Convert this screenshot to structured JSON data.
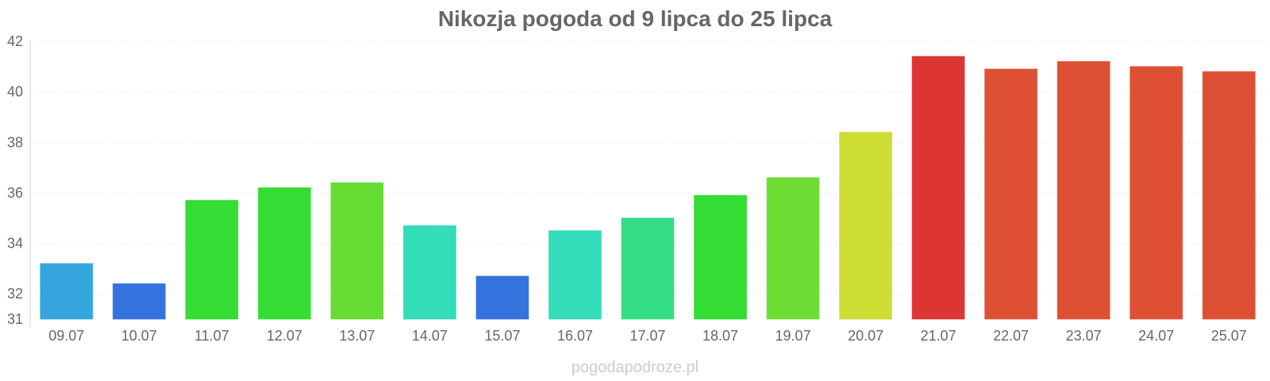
{
  "chart_data": {
    "type": "bar",
    "title": "Nikozja pogoda od 9 lipca do 25 lipca",
    "xlabel": "",
    "ylabel": "",
    "categories": [
      "09.07",
      "10.07",
      "11.07",
      "12.07",
      "13.07",
      "14.07",
      "15.07",
      "16.07",
      "17.07",
      "18.07",
      "19.07",
      "20.07",
      "21.07",
      "22.07",
      "23.07",
      "24.07",
      "25.07"
    ],
    "values": [
      33.2,
      32.4,
      35.7,
      36.2,
      36.4,
      34.7,
      32.7,
      34.5,
      35.0,
      35.9,
      36.6,
      38.4,
      41.4,
      40.9,
      41.2,
      41.0,
      40.8
    ],
    "colors": [
      "#34a6dd",
      "#3472dd",
      "#34dd34",
      "#34dd34",
      "#67dd34",
      "#34ddb9",
      "#3472dd",
      "#34ddb9",
      "#34dd86",
      "#34dd34",
      "#6ddd34",
      "#cddd34",
      "#dd3434",
      "#dd5034",
      "#dd5034",
      "#dd5034",
      "#dd5034"
    ],
    "yticks": [
      31,
      32,
      34,
      36,
      38,
      40,
      42
    ],
    "ylim": [
      31,
      42
    ],
    "grid": true,
    "legend": "none"
  },
  "watermark": "pogodapodroze.pl"
}
